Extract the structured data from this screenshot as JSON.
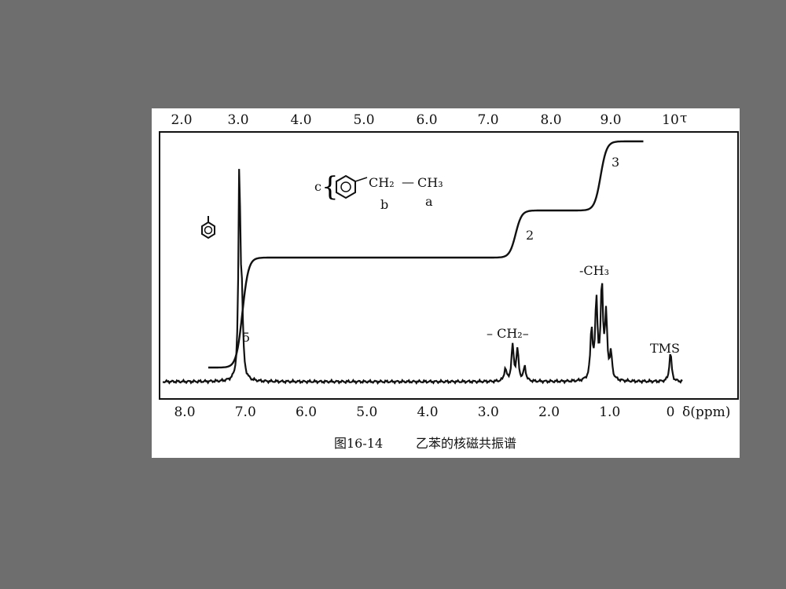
{
  "chart_data": {
    "type": "line",
    "x_axis_bottom": {
      "unit_label": "δ(ppm)",
      "ticks": [
        "8.0",
        "7.0",
        "6.0",
        "5.0",
        "4.0",
        "3.0",
        "2.0",
        "1.0",
        "0"
      ],
      "range": [
        8.4,
        -0.3
      ],
      "reversed": true
    },
    "x_axis_top": {
      "unit_label": "τ",
      "ticks": [
        "2.0",
        "3.0",
        "4.0",
        "5.0",
        "6.0",
        "7.0",
        "8.0",
        "9.0",
        "10"
      ]
    },
    "series": [
      {
        "kind": "spectrum",
        "peaks": [
          {
            "ppm": 7.1,
            "height": 1.0
          },
          {
            "ppm": 7.06,
            "height": 0.35
          },
          {
            "ppm": 2.72,
            "height": 0.06
          },
          {
            "ppm": 2.6,
            "height": 0.17
          },
          {
            "ppm": 2.52,
            "height": 0.15
          },
          {
            "ppm": 2.4,
            "height": 0.07
          },
          {
            "ppm": 1.3,
            "height": 0.24
          },
          {
            "ppm": 1.22,
            "height": 0.38
          },
          {
            "ppm": 1.13,
            "height": 0.45
          },
          {
            "ppm": 1.06,
            "height": 0.3
          },
          {
            "ppm": 0.98,
            "height": 0.12
          },
          {
            "ppm": 0.0,
            "height": 0.14
          }
        ]
      },
      {
        "kind": "integral",
        "steps": [
          {
            "ppm": 7.05,
            "ratio": "5"
          },
          {
            "ppm": 2.55,
            "ratio": "2"
          },
          {
            "ppm": 1.15,
            "ratio": "3"
          }
        ]
      }
    ],
    "annotations": {
      "ring": "○",
      "ring_brace": "{",
      "molecule_c": "c",
      "molecule_ch2": "CH₂",
      "molecule_bond": "—",
      "molecule_ch3": "CH₃",
      "molecule_b": "b",
      "molecule_a": "a",
      "integral_5": "5",
      "integral_2": "2",
      "integral_3": "3",
      "ch2_label": "– CH₂–",
      "ch3_label": "-CH₃",
      "tms_label": "TMS"
    }
  },
  "caption": {
    "figure_no": "图16-14",
    "text": "乙苯的核磁共振谱"
  }
}
